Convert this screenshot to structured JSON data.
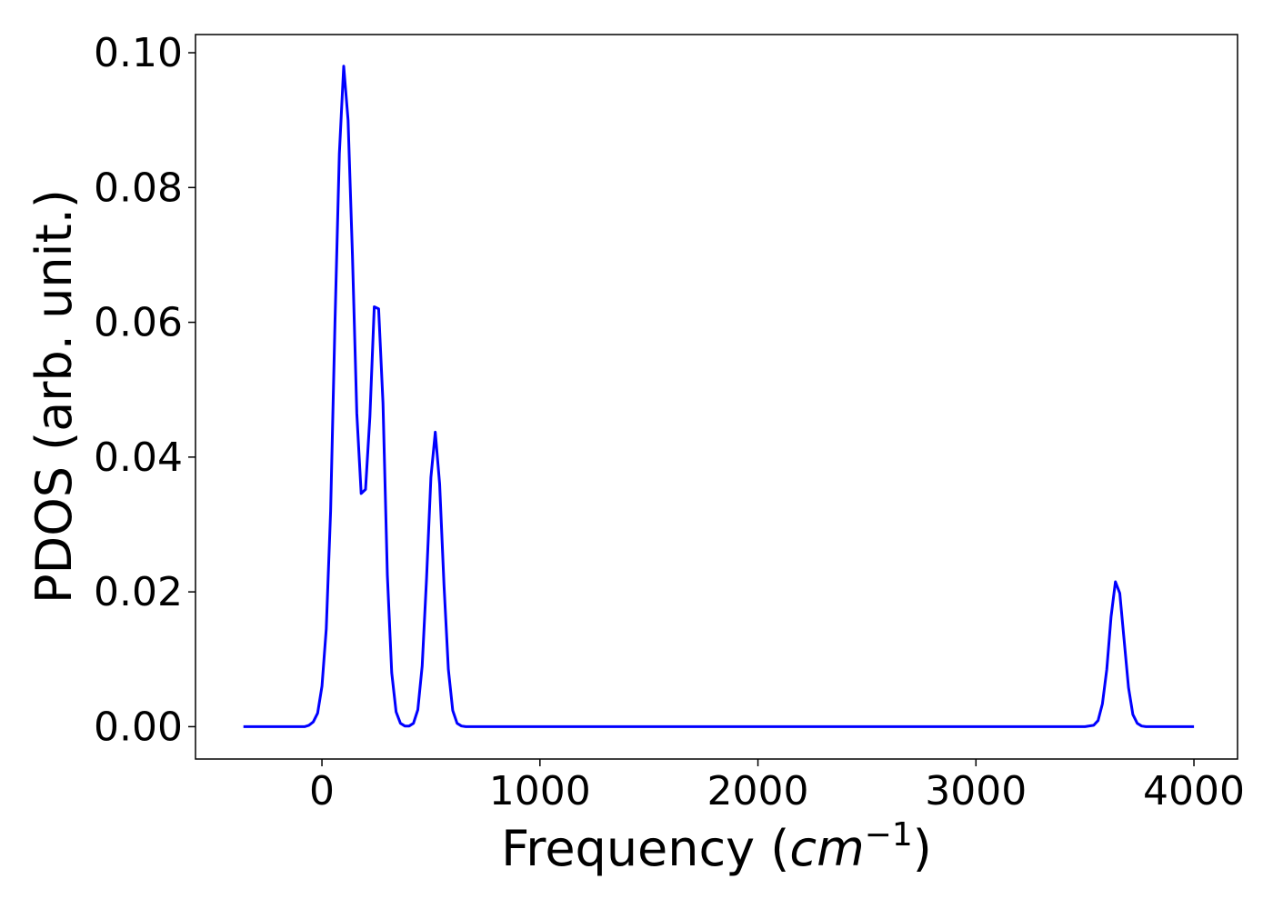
{
  "chart_data": {
    "type": "line",
    "title": "",
    "xlabel": "Frequency (",
    "xlabel_unit": "cm",
    "xlabel_exponent": "−1",
    "xlabel_close": ")",
    "ylabel": "PDOS (arb. unit.)",
    "xlim": [
      -580,
      4200
    ],
    "ylim": [
      -0.0048,
      0.1027
    ],
    "xticks": [
      0,
      1000,
      2000,
      3000,
      4000
    ],
    "xtick_labels": [
      "0",
      "1000",
      "2000",
      "3000",
      "4000"
    ],
    "yticks": [
      0.0,
      0.02,
      0.04,
      0.06,
      0.08,
      0.1
    ],
    "ytick_labels": [
      "0.00",
      "0.02",
      "0.04",
      "0.06",
      "0.08",
      "0.10"
    ],
    "grid": false,
    "series": [
      {
        "color": "#0000ff",
        "x": [
          -360,
          -300,
          -240,
          -180,
          -120,
          -80,
          -60,
          -40,
          -20,
          0,
          20,
          40,
          60,
          80,
          100,
          120,
          140,
          160,
          180,
          200,
          220,
          240,
          260,
          280,
          300,
          320,
          340,
          360,
          380,
          400,
          420,
          440,
          460,
          480,
          500,
          520,
          540,
          560,
          580,
          600,
          620,
          640,
          660,
          680,
          700,
          720,
          740,
          760,
          800,
          1000,
          2000,
          3000,
          3500,
          3540,
          3560,
          3580,
          3600,
          3620,
          3640,
          3660,
          3680,
          3700,
          3720,
          3740,
          3760,
          3780,
          3800,
          3850,
          3900,
          4000
        ],
        "y": [
          0.0,
          0.0,
          0.0,
          0.0,
          0.0,
          0.0,
          0.0002,
          0.0007,
          0.002,
          0.006,
          0.0145,
          0.032,
          0.06,
          0.085,
          0.098,
          0.09,
          0.07,
          0.0465,
          0.0346,
          0.0352,
          0.046,
          0.0623,
          0.062,
          0.048,
          0.0225,
          0.008,
          0.0022,
          0.0005,
          0.0001,
          0.0001,
          0.0005,
          0.0025,
          0.009,
          0.022,
          0.037,
          0.0437,
          0.036,
          0.021,
          0.0085,
          0.0024,
          0.0005,
          0.0001,
          0.0,
          0.0,
          0.0,
          0.0,
          0.0,
          0.0,
          0.0,
          0.0,
          0.0,
          0.0,
          0.0,
          0.0002,
          0.0009,
          0.0034,
          0.0085,
          0.0163,
          0.0215,
          0.0198,
          0.0128,
          0.0058,
          0.0018,
          0.0005,
          0.0001,
          0.0,
          0.0,
          0.0,
          0.0,
          0.0
        ]
      }
    ]
  }
}
